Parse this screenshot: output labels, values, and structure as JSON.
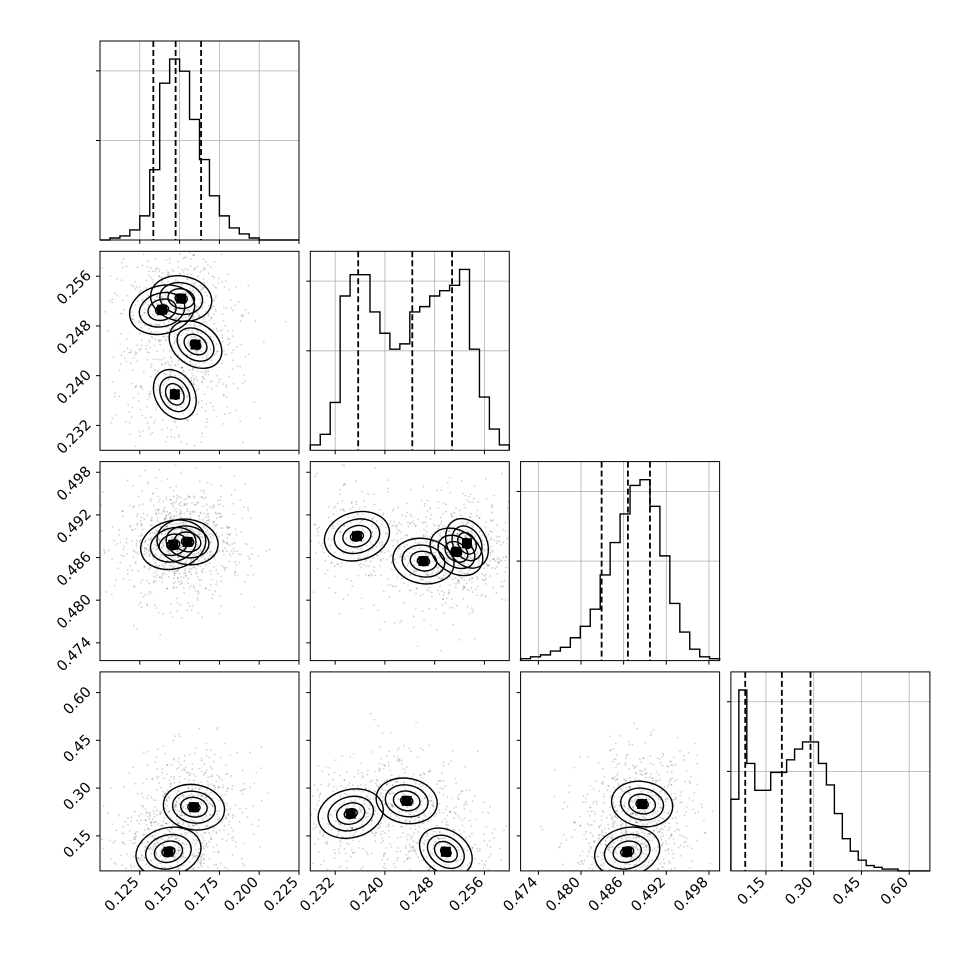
{
  "chart_data": {
    "type": "corner",
    "title": "",
    "parameters": [
      {
        "range": [
          0.1,
          0.225
        ],
        "ticks": [
          0.125,
          0.15,
          0.175,
          0.2,
          0.225
        ],
        "tick_labels": [
          "0.125",
          "0.150",
          "0.175",
          "0.200",
          "0.225"
        ],
        "quantiles": [
          0.1335,
          0.1475,
          0.1635
        ]
      },
      {
        "range": [
          0.228,
          0.26
        ],
        "ticks": [
          0.232,
          0.24,
          0.248,
          0.256
        ],
        "tick_labels": [
          "0.232",
          "0.240",
          "0.248",
          "0.256"
        ],
        "quantiles": [
          0.2357,
          0.2444,
          0.2508
        ]
      },
      {
        "range": [
          0.4715,
          0.4995
        ],
        "ticks": [
          0.474,
          0.48,
          0.486,
          0.492,
          0.498
        ],
        "tick_labels": [
          "0.474",
          "0.480",
          "0.486",
          "0.492",
          "0.498"
        ],
        "quantiles": [
          0.4829,
          0.4866,
          0.4897
        ]
      },
      {
        "range": [
          0.04,
          0.665
        ],
        "ticks": [
          0.15,
          0.3,
          0.45,
          0.6
        ],
        "tick_labels": [
          "0.15",
          "0.30",
          "0.45",
          "0.60"
        ],
        "quantiles": [
          0.085,
          0.2,
          0.29
        ]
      }
    ],
    "histograms": [
      {
        "edges_from": 0.1,
        "edges_to": 0.225,
        "counts": [
          0,
          1,
          2,
          5,
          12,
          35,
          78,
          90,
          84,
          60,
          40,
          22,
          12,
          6,
          3,
          1,
          0,
          0,
          0,
          0
        ]
      },
      {
        "edges_from": 0.228,
        "edges_to": 0.26,
        "counts": [
          2,
          6,
          18,
          58,
          66,
          66,
          52,
          44,
          38,
          40,
          52,
          54,
          58,
          60,
          62,
          68,
          38,
          20,
          8,
          2
        ]
      },
      {
        "edges_from": 0.4715,
        "edges_to": 0.4995,
        "counts": [
          1,
          2,
          3,
          5,
          7,
          12,
          18,
          27,
          45,
          62,
          77,
          92,
          95,
          81,
          55,
          30,
          15,
          6,
          2,
          1
        ]
      },
      {
        "edges_from": 0.04,
        "edges_to": 0.665,
        "counts": [
          40,
          101,
          60,
          45,
          45,
          55,
          55,
          62,
          68,
          72,
          72,
          60,
          48,
          32,
          18,
          11,
          6,
          3,
          2,
          1,
          1,
          0,
          0,
          0,
          0
        ]
      }
    ],
    "density_peaks": [
      {
        "row": 1,
        "col": 0,
        "peaks": [
          [
            0.139,
            0.2506
          ],
          [
            0.151,
            0.2524
          ],
          [
            0.16,
            0.245
          ],
          [
            0.147,
            0.237
          ]
        ]
      },
      {
        "row": 2,
        "col": 0,
        "peaks": [
          [
            0.146,
            0.4878
          ],
          [
            0.155,
            0.4882
          ]
        ]
      },
      {
        "row": 2,
        "col": 1,
        "peaks": [
          [
            0.2355,
            0.489
          ],
          [
            0.2462,
            0.4855
          ],
          [
            0.2515,
            0.4868
          ],
          [
            0.2532,
            0.488
          ]
        ]
      },
      {
        "row": 3,
        "col": 0,
        "peaks": [
          [
            0.143,
            0.1
          ],
          [
            0.159,
            0.24
          ]
        ]
      },
      {
        "row": 3,
        "col": 1,
        "peaks": [
          [
            0.2345,
            0.22
          ],
          [
            0.2435,
            0.26
          ],
          [
            0.2498,
            0.1
          ]
        ]
      },
      {
        "row": 3,
        "col": 2,
        "peaks": [
          [
            0.4865,
            0.1
          ],
          [
            0.4886,
            0.25
          ]
        ]
      }
    ]
  }
}
